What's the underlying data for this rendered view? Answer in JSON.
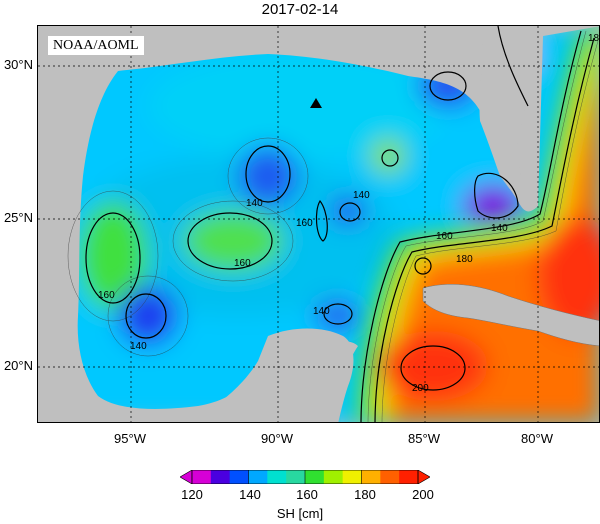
{
  "title": "2017-02-14",
  "source_label": "NOAA/AOML",
  "lat_labels": [
    "30°N",
    "25°N",
    "20°N"
  ],
  "lon_labels": [
    "95°W",
    "90°W",
    "85°W",
    "80°W"
  ],
  "contour_labels": [
    "140",
    "140",
    "140",
    "140",
    "140",
    "160",
    "160",
    "160",
    "160",
    "180",
    "200",
    "18"
  ],
  "colorbar": {
    "title": "SH [cm]",
    "ticks": [
      "120",
      "140",
      "160",
      "180",
      "200"
    ],
    "colors": [
      "#d600d6",
      "#4a00e0",
      "#0050ff",
      "#00a8ff",
      "#00e0d0",
      "#28d8a0",
      "#30e030",
      "#a0f000",
      "#f0f000",
      "#ffb000",
      "#ff6000",
      "#ff2000"
    ]
  },
  "marker": "triangle"
}
